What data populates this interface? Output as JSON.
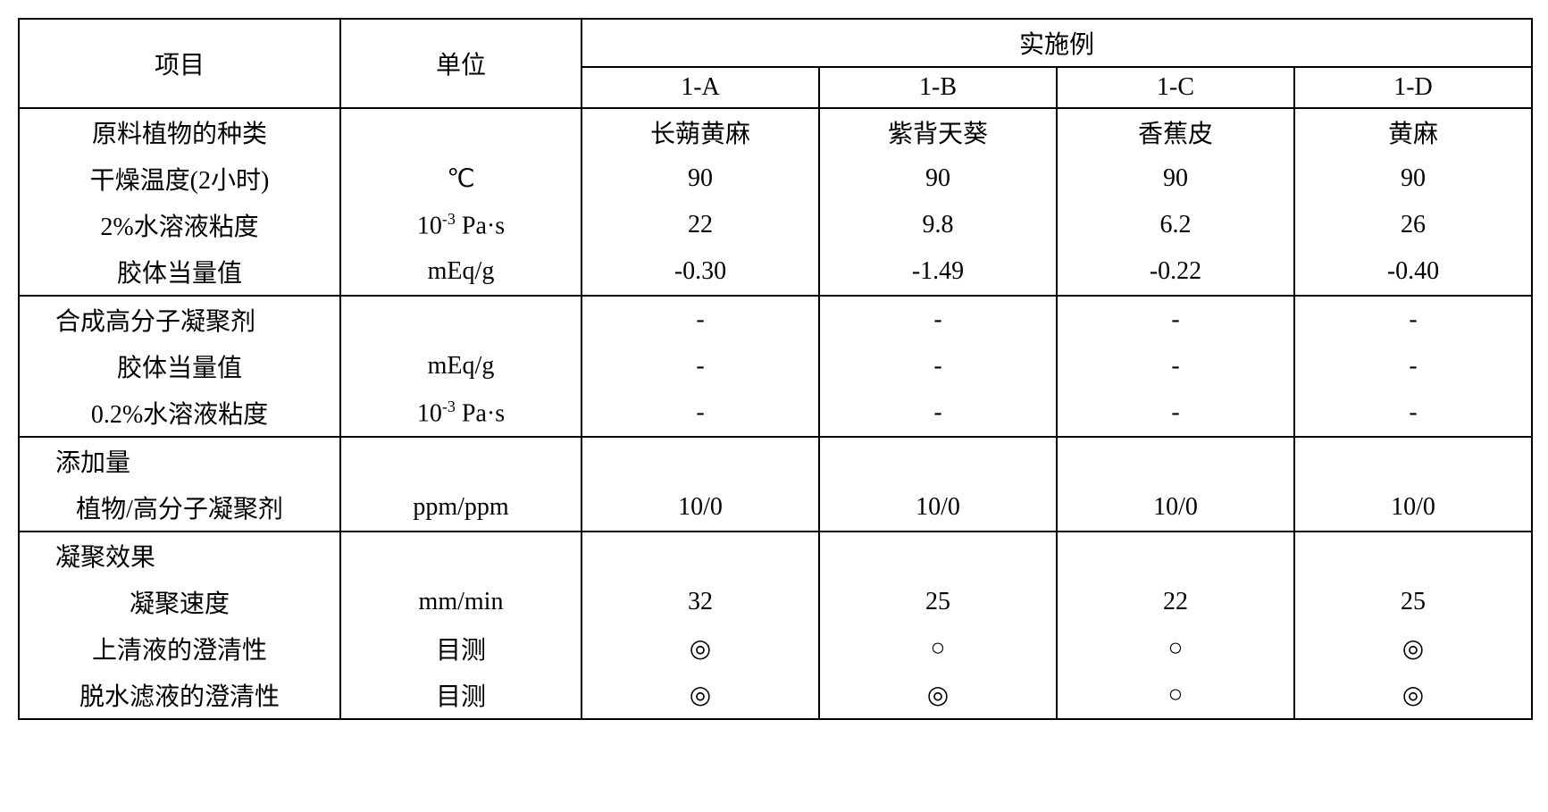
{
  "header": {
    "item": "项目",
    "unit": "单位",
    "examples_title": "实施例",
    "cols": [
      "1-A",
      "1-B",
      "1-C",
      "1-D"
    ]
  },
  "section1": {
    "row1": {
      "item": "原料植物的种类",
      "unit": "",
      "vals": [
        "长蒴黄麻",
        "紫背天葵",
        "香蕉皮",
        "黄麻"
      ]
    },
    "row2": {
      "item": "干燥温度(2小时)",
      "unit": "℃",
      "vals": [
        "90",
        "90",
        "90",
        "90"
      ]
    },
    "row3": {
      "item": "2%水溶液粘度",
      "unit_prefix": "10",
      "unit_sup": "-3",
      "unit_suffix": " Pa·s",
      "vals": [
        "22",
        "9.8",
        "6.2",
        "26"
      ]
    },
    "row4": {
      "item": "胶体当量值",
      "unit": "mEq/g",
      "vals": [
        "-0.30",
        "-1.49",
        "-0.22",
        "-0.40"
      ]
    }
  },
  "section2": {
    "row1": {
      "item": "合成高分子凝聚剂",
      "unit": "",
      "vals": [
        "-",
        "-",
        "-",
        "-"
      ]
    },
    "row2": {
      "item": "胶体当量值",
      "unit": "mEq/g",
      "vals": [
        "-",
        "-",
        "-",
        "-"
      ]
    },
    "row3": {
      "item": "0.2%水溶液粘度",
      "unit_prefix": "10",
      "unit_sup": "-3",
      "unit_suffix": " Pa·s",
      "vals": [
        "-",
        "-",
        "-",
        "-"
      ]
    }
  },
  "section3": {
    "row1": {
      "item": "添加量",
      "unit": "",
      "vals": [
        "",
        "",
        "",
        ""
      ]
    },
    "row2": {
      "item": "植物/高分子凝聚剂",
      "unit": "ppm/ppm",
      "vals": [
        "10/0",
        "10/0",
        "10/0",
        "10/0"
      ]
    }
  },
  "section4": {
    "row1": {
      "item": "凝聚效果",
      "unit": "",
      "vals": [
        "",
        "",
        "",
        ""
      ]
    },
    "row2": {
      "item": "凝聚速度",
      "unit": "mm/min",
      "vals": [
        "32",
        "25",
        "22",
        "25"
      ]
    },
    "row3": {
      "item": "上清液的澄清性",
      "unit": "目测",
      "vals": [
        "◎",
        "○",
        "○",
        "◎"
      ]
    },
    "row4": {
      "item": "脱水滤液的澄清性",
      "unit": "目测",
      "vals": [
        "◎",
        "◎",
        "○",
        "◎"
      ]
    }
  }
}
